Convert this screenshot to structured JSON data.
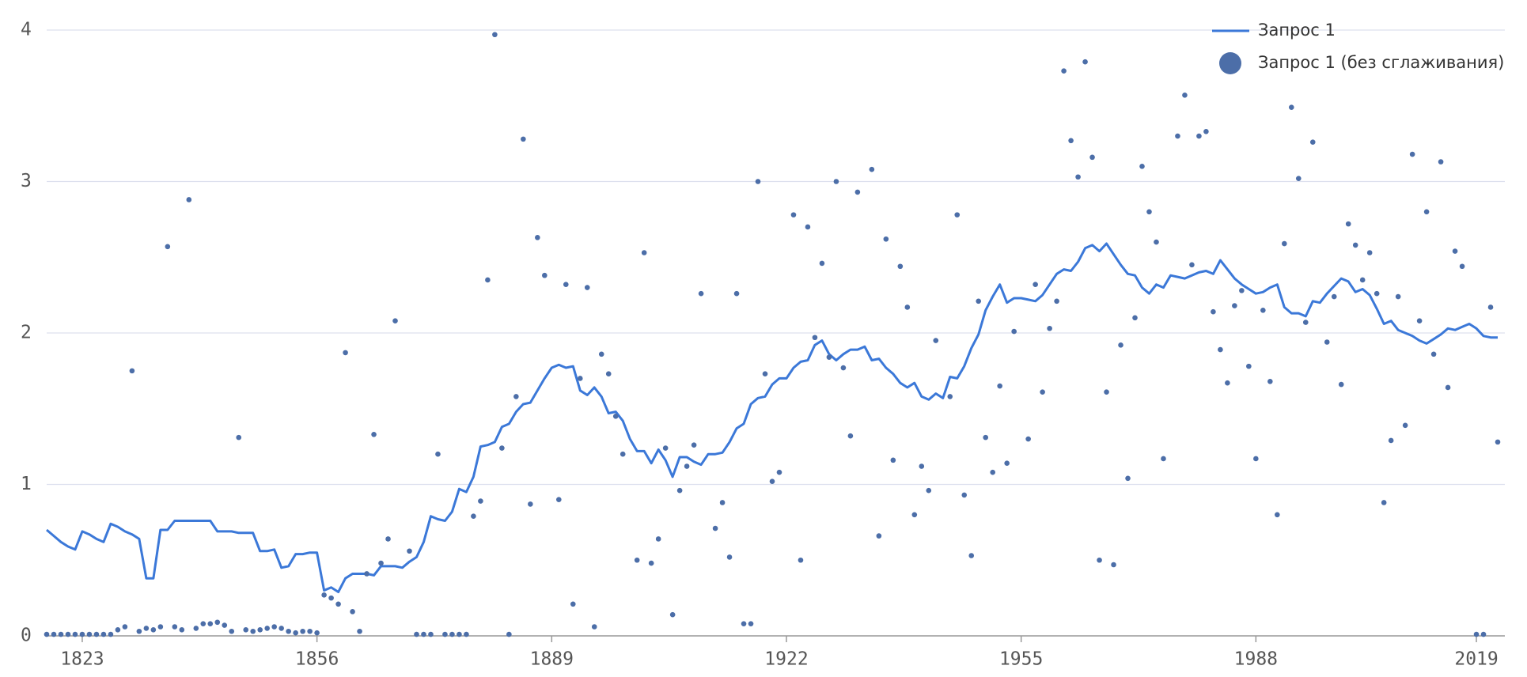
{
  "chart_data": {
    "type": "line",
    "x": [
      1818,
      1819,
      1820,
      1821,
      1822,
      1823,
      1824,
      1825,
      1826,
      1827,
      1828,
      1829,
      1830,
      1831,
      1832,
      1833,
      1834,
      1835,
      1836,
      1837,
      1838,
      1839,
      1840,
      1841,
      1842,
      1843,
      1844,
      1845,
      1846,
      1847,
      1848,
      1849,
      1850,
      1851,
      1852,
      1853,
      1854,
      1855,
      1856,
      1857,
      1858,
      1859,
      1860,
      1861,
      1862,
      1863,
      1864,
      1865,
      1866,
      1867,
      1868,
      1869,
      1870,
      1871,
      1872,
      1873,
      1874,
      1875,
      1876,
      1877,
      1878,
      1879,
      1880,
      1881,
      1882,
      1883,
      1884,
      1885,
      1886,
      1887,
      1888,
      1889,
      1890,
      1891,
      1892,
      1893,
      1894,
      1895,
      1896,
      1897,
      1898,
      1899,
      1900,
      1901,
      1902,
      1903,
      1904,
      1905,
      1906,
      1907,
      1908,
      1909,
      1910,
      1911,
      1912,
      1913,
      1914,
      1915,
      1916,
      1917,
      1918,
      1919,
      1920,
      1921,
      1922,
      1923,
      1924,
      1925,
      1926,
      1927,
      1928,
      1929,
      1930,
      1931,
      1932,
      1933,
      1934,
      1935,
      1936,
      1937,
      1938,
      1939,
      1940,
      1941,
      1942,
      1943,
      1944,
      1945,
      1946,
      1947,
      1948,
      1949,
      1950,
      1951,
      1952,
      1953,
      1954,
      1955,
      1956,
      1957,
      1958,
      1959,
      1960,
      1961,
      1962,
      1963,
      1964,
      1965,
      1966,
      1967,
      1968,
      1969,
      1970,
      1971,
      1972,
      1973,
      1974,
      1975,
      1976,
      1977,
      1978,
      1979,
      1980,
      1981,
      1982,
      1983,
      1984,
      1985,
      1986,
      1987,
      1988,
      1989,
      1990,
      1991,
      1992,
      1993,
      1994,
      1995,
      1996,
      1997,
      1998,
      1999,
      2000,
      2001,
      2002,
      2003,
      2004,
      2005,
      2006,
      2007,
      2008,
      2009,
      2010,
      2011,
      2012,
      2013,
      2014,
      2015,
      2016,
      2017,
      2018,
      2019,
      2020,
      2021,
      2022
    ],
    "series": [
      {
        "name": "Запрос 1",
        "type": "line",
        "color": "#3b78d8",
        "values": [
          0.7,
          0.66,
          0.62,
          0.59,
          0.57,
          0.69,
          0.67,
          0.64,
          0.62,
          0.74,
          0.72,
          0.69,
          0.67,
          0.64,
          0.38,
          0.38,
          0.7,
          0.7,
          0.76,
          0.76,
          0.76,
          0.76,
          0.76,
          0.76,
          0.69,
          0.69,
          0.69,
          0.68,
          0.68,
          0.68,
          0.56,
          0.56,
          0.57,
          0.45,
          0.46,
          0.54,
          0.54,
          0.55,
          0.55,
          0.3,
          0.32,
          0.29,
          0.38,
          0.41,
          0.41,
          0.41,
          0.4,
          0.46,
          0.46,
          0.46,
          0.45,
          0.49,
          0.52,
          0.62,
          0.79,
          0.77,
          0.76,
          0.82,
          0.97,
          0.95,
          1.05,
          1.25,
          1.26,
          1.28,
          1.38,
          1.4,
          1.48,
          1.53,
          1.54,
          1.62,
          1.7,
          1.77,
          1.79,
          1.77,
          1.78,
          1.62,
          1.59,
          1.64,
          1.58,
          1.47,
          1.48,
          1.42,
          1.3,
          1.22,
          1.22,
          1.14,
          1.23,
          1.16,
          1.05,
          1.18,
          1.18,
          1.15,
          1.13,
          1.2,
          1.2,
          1.21,
          1.28,
          1.37,
          1.4,
          1.53,
          1.57,
          1.58,
          1.66,
          1.7,
          1.7,
          1.77,
          1.81,
          1.82,
          1.92,
          1.95,
          1.86,
          1.82,
          1.86,
          1.89,
          1.89,
          1.91,
          1.82,
          1.83,
          1.77,
          1.73,
          1.67,
          1.64,
          1.67,
          1.58,
          1.56,
          1.6,
          1.57,
          1.71,
          1.7,
          1.78,
          1.9,
          1.99,
          2.15,
          2.24,
          2.32,
          2.2,
          2.23,
          2.23,
          2.22,
          2.21,
          2.25,
          2.32,
          2.39,
          2.42,
          2.41,
          2.47,
          2.56,
          2.58,
          2.54,
          2.59,
          2.52,
          2.45,
          2.39,
          2.38,
          2.3,
          2.26,
          2.32,
          2.3,
          2.38,
          2.37,
          2.36,
          2.38,
          2.4,
          2.41,
          2.39,
          2.48,
          2.42,
          2.36,
          2.32,
          2.29,
          2.26,
          2.27,
          2.3,
          2.32,
          2.17,
          2.13,
          2.13,
          2.11,
          2.21,
          2.2,
          2.26,
          2.31,
          2.36,
          2.34,
          2.27,
          2.29,
          2.25,
          2.16,
          2.06,
          2.08,
          2.02,
          2.0,
          1.98,
          1.95,
          1.93,
          1.96,
          1.99,
          2.03,
          2.02,
          2.04,
          2.06,
          2.03,
          1.98,
          1.97,
          1.97
        ]
      },
      {
        "name": "Запрос 1 (без сглаживания)",
        "type": "scatter",
        "color": "#4c6ea8",
        "values": [
          0.01,
          0.01,
          0.01,
          0.01,
          0.01,
          0.01,
          0.01,
          0.01,
          0.01,
          0.01,
          0.04,
          0.06,
          1.75,
          0.03,
          0.05,
          0.04,
          0.06,
          2.57,
          0.06,
          0.04,
          2.88,
          0.05,
          0.08,
          0.08,
          0.09,
          0.07,
          0.03,
          1.31,
          0.04,
          0.03,
          0.04,
          0.05,
          0.06,
          0.05,
          0.03,
          0.02,
          0.03,
          0.03,
          0.02,
          0.27,
          0.25,
          0.21,
          1.87,
          0.16,
          0.03,
          0.41,
          1.33,
          0.48,
          0.64,
          2.08,
          null,
          0.56,
          0.01,
          0.01,
          0.01,
          1.2,
          0.01,
          0.01,
          0.01,
          0.01,
          0.79,
          0.89,
          2.35,
          3.97,
          1.24,
          0.01,
          1.58,
          3.28,
          0.87,
          2.63,
          2.38,
          null,
          0.9,
          2.32,
          0.21,
          1.7,
          2.3,
          0.06,
          1.86,
          1.73,
          1.45,
          1.2,
          null,
          0.5,
          2.53,
          0.48,
          0.64,
          1.24,
          0.14,
          0.96,
          1.12,
          1.26,
          2.26,
          null,
          0.71,
          0.88,
          0.52,
          2.26,
          0.08,
          0.08,
          3.0,
          1.73,
          1.02,
          1.08,
          null,
          2.78,
          0.5,
          2.7,
          1.97,
          2.46,
          1.84,
          3.0,
          1.77,
          1.32,
          2.93,
          null,
          3.08,
          0.66,
          2.62,
          1.16,
          2.44,
          2.17,
          0.8,
          1.12,
          0.96,
          1.95,
          null,
          1.58,
          2.78,
          0.93,
          0.53,
          2.21,
          1.31,
          1.08,
          1.65,
          1.14,
          2.01,
          null,
          1.3,
          2.32,
          1.61,
          2.03,
          2.21,
          3.73,
          3.27,
          3.03,
          3.79,
          3.16,
          0.5,
          1.61,
          0.47,
          1.92,
          1.04,
          2.1,
          3.1,
          2.8,
          2.6,
          1.17,
          null,
          3.3,
          3.57,
          2.45,
          3.3,
          3.33,
          2.14,
          1.89,
          1.67,
          2.18,
          2.28,
          1.78,
          1.17,
          2.15,
          1.68,
          0.8,
          2.59,
          3.49,
          3.02,
          2.07,
          3.26,
          null,
          1.94,
          2.24,
          1.66,
          2.72,
          2.58,
          2.35,
          2.53,
          2.26,
          0.88,
          1.29,
          2.24,
          1.39,
          3.18,
          2.08,
          2.8,
          1.86,
          3.13,
          1.64,
          2.54,
          2.44,
          null,
          0.01,
          0.01,
          2.17,
          1.28
        ]
      }
    ],
    "xlim": [
      1818,
      2023
    ],
    "xticks": [
      1823,
      1856,
      1889,
      1922,
      1955,
      1988,
      2019
    ],
    "ylim": [
      0,
      4
    ],
    "yticks": [
      0,
      1,
      2,
      3,
      4
    ],
    "grid": true,
    "legend": "top-right"
  }
}
